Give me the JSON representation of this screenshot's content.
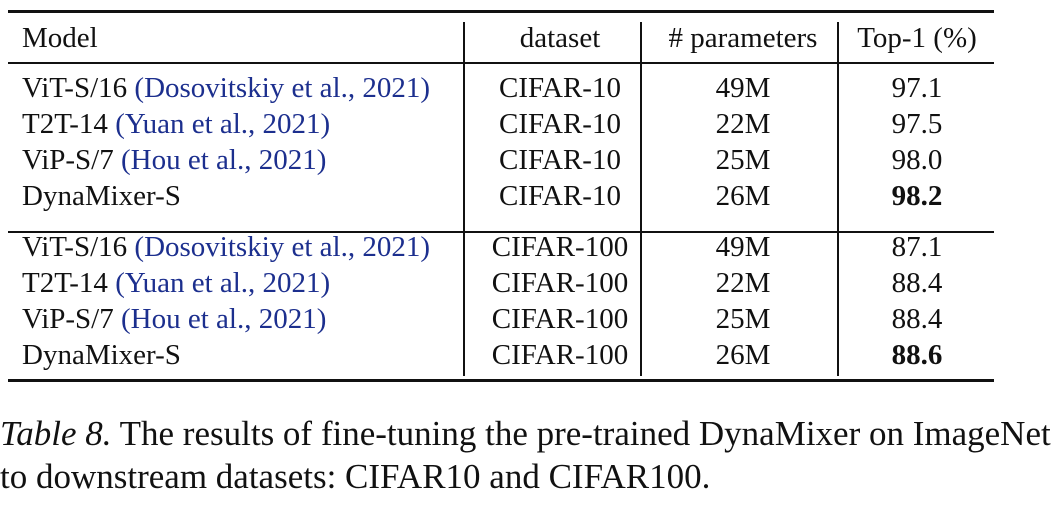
{
  "table": {
    "headers": {
      "model": "Model",
      "dataset": "dataset",
      "params": "# parameters",
      "top1": "Top-1 (%)"
    },
    "group1": [
      {
        "model": "ViT-S/16",
        "cite": "(Dosovitskiy et al., 2021)",
        "dataset": "CIFAR-10",
        "params": "49M",
        "top1": "97.1",
        "bold": false
      },
      {
        "model": "T2T-14",
        "cite": "(Yuan et al., 2021)",
        "dataset": "CIFAR-10",
        "params": "22M",
        "top1": "97.5",
        "bold": false
      },
      {
        "model": "ViP-S/7",
        "cite": "(Hou et al., 2021)",
        "dataset": "CIFAR-10",
        "params": "25M",
        "top1": "98.0",
        "bold": false
      },
      {
        "model": "DynaMixer-S",
        "cite": "",
        "dataset": "CIFAR-10",
        "params": "26M",
        "top1": "98.2",
        "bold": true
      }
    ],
    "group2": [
      {
        "model": "ViT-S/16",
        "cite": "(Dosovitskiy et al., 2021)",
        "dataset": "CIFAR-100",
        "params": "49M",
        "top1": "87.1",
        "bold": false
      },
      {
        "model": "T2T-14",
        "cite": "(Yuan et al., 2021)",
        "dataset": "CIFAR-100",
        "params": "22M",
        "top1": "88.4",
        "bold": false
      },
      {
        "model": "ViP-S/7",
        "cite": "(Hou et al., 2021)",
        "dataset": "CIFAR-100",
        "params": "25M",
        "top1": "88.4",
        "bold": false
      },
      {
        "model": "DynaMixer-S",
        "cite": "",
        "dataset": "CIFAR-100",
        "params": "26M",
        "top1": "88.6",
        "bold": true
      }
    ]
  },
  "caption": {
    "label": "Table 8.",
    "text": "The results of fine-tuning the pre-trained DynaMixer on ImageNet to downstream datasets: CIFAR10 and CIFAR100."
  },
  "colors": {
    "citation": "#1c2f8e",
    "text": "#111111"
  }
}
